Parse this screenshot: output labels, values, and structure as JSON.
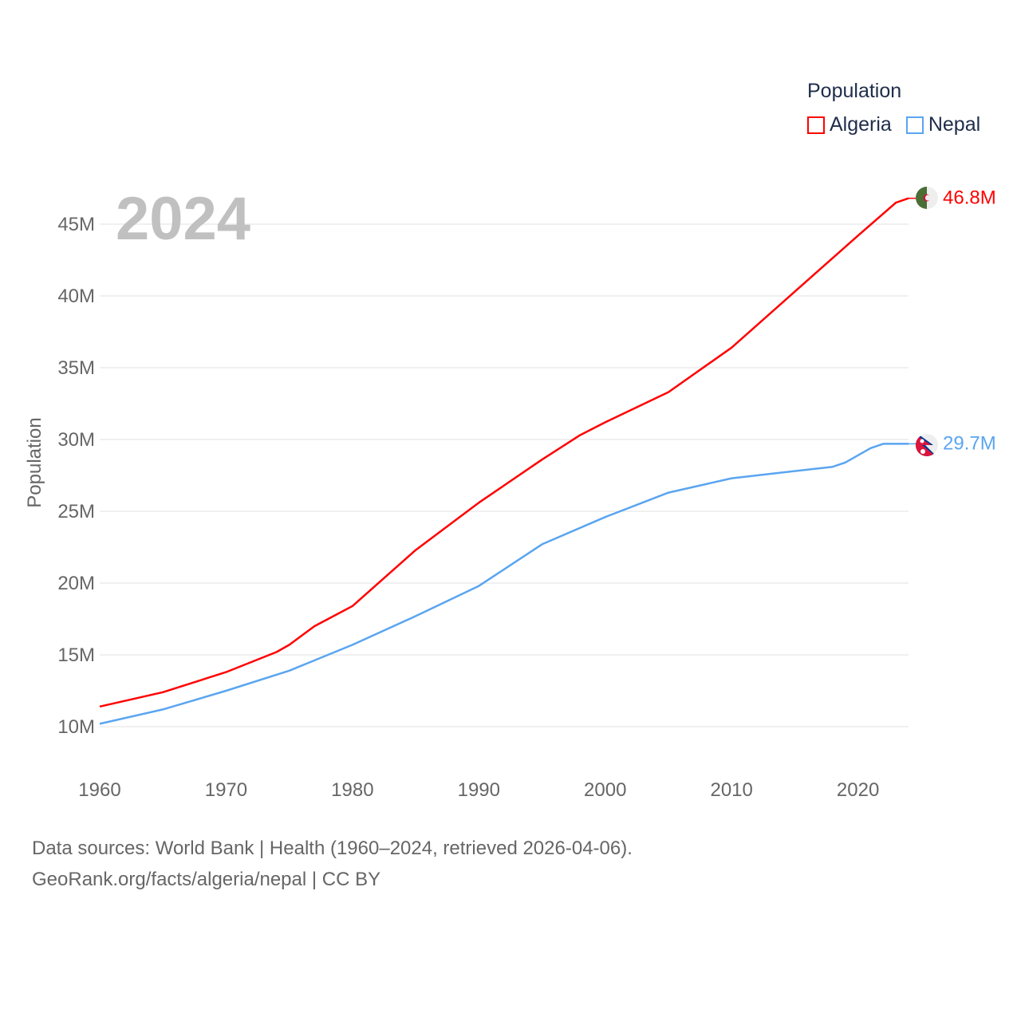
{
  "chart_data": {
    "type": "line",
    "title": "",
    "year_watermark": "2024",
    "xlabel": "",
    "ylabel": "Population",
    "xlim": [
      1960,
      2024
    ],
    "ylim": [
      7,
      47
    ],
    "x_ticks": [
      "1960",
      "1970",
      "1980",
      "1990",
      "2000",
      "2010",
      "2020"
    ],
    "y_ticks": [
      {
        "value": 10,
        "label": "10M"
      },
      {
        "value": 15,
        "label": "15M"
      },
      {
        "value": 20,
        "label": "20M"
      },
      {
        "value": 25,
        "label": "25M"
      },
      {
        "value": 30,
        "label": "30M"
      },
      {
        "value": 35,
        "label": "35M"
      },
      {
        "value": 40,
        "label": "40M"
      },
      {
        "value": 45,
        "label": "45M"
      }
    ],
    "grid": true,
    "legend": {
      "title": "Population",
      "position": "top-right"
    },
    "series": [
      {
        "name": "Algeria",
        "color": "#ff0000",
        "end_label": "46.8M",
        "x": [
          1960,
          1965,
          1970,
          1974,
          1975,
          1977,
          1980,
          1985,
          1990,
          1995,
          1998,
          2000,
          2005,
          2010,
          2015,
          2020,
          2023,
          2024
        ],
        "values": [
          11.4,
          12.4,
          13.8,
          15.2,
          15.7,
          17.0,
          18.4,
          22.3,
          25.6,
          28.6,
          30.3,
          31.2,
          33.3,
          36.4,
          40.3,
          44.2,
          46.5,
          46.8
        ]
      },
      {
        "name": "Nepal",
        "color": "#5aa5f0",
        "end_label": "29.7M",
        "x": [
          1960,
          1965,
          1970,
          1975,
          1980,
          1985,
          1990,
          1995,
          2000,
          2005,
          2010,
          2014,
          2018,
          2019,
          2021,
          2022,
          2024
        ],
        "values": [
          10.2,
          11.2,
          12.5,
          13.9,
          15.7,
          17.7,
          19.8,
          22.7,
          24.6,
          26.3,
          27.3,
          27.7,
          28.1,
          28.4,
          29.4,
          29.7,
          29.7
        ]
      }
    ]
  },
  "footer": {
    "line1": "Data sources: World Bank | Health (1960–2024, retrieved 2026-04-06).",
    "line2": "GeoRank.org/facts/algeria/nepal | CC BY"
  }
}
